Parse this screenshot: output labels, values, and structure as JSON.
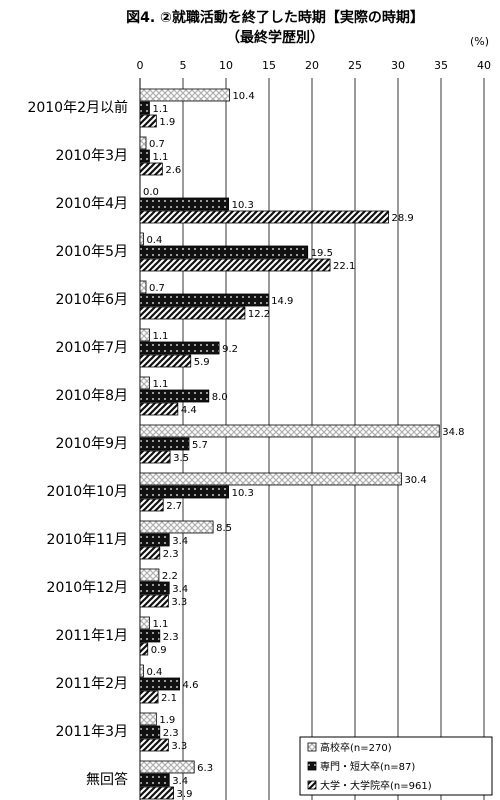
{
  "chart_data": {
    "type": "hbar",
    "title": "図4. ②就職活動を終了した時期【実際の時期】",
    "subtitle": "（最終学歴別）",
    "unit_label": "(%)",
    "categories": [
      "2010年2月以前",
      "2010年3月",
      "2010年4月",
      "2010年5月",
      "2010年6月",
      "2010年7月",
      "2010年8月",
      "2010年9月",
      "2010年10月",
      "2010年11月",
      "2010年12月",
      "2011年1月",
      "2011年2月",
      "2011年3月",
      "無回答"
    ],
    "series": [
      {
        "name": "高校卒(n=270)",
        "color": "#b0b0b0",
        "pattern": "crosshatch",
        "values": [
          10.4,
          0.7,
          0.0,
          0.4,
          0.7,
          1.1,
          1.1,
          34.8,
          30.4,
          8.5,
          2.2,
          1.1,
          0.4,
          1.9,
          6.3
        ],
        "value_labels": [
          "10.4",
          "0.7",
          "0.0",
          "0.4",
          "0.7",
          "1.1",
          "1.1",
          "34.8",
          "30.4",
          "8.5",
          "2.2",
          "1.1",
          "0.4",
          "1.9",
          "6.3"
        ]
      },
      {
        "name": "専門・短大卒(n=87)",
        "color": "#111111",
        "pattern": "dots",
        "values": [
          1.1,
          1.1,
          10.3,
          19.5,
          14.9,
          9.2,
          8.0,
          5.7,
          10.3,
          3.4,
          3.4,
          2.3,
          4.6,
          2.3,
          3.4
        ],
        "value_labels": [
          "1.1",
          "1.1",
          "10.3",
          "19.5",
          "14.9",
          "9.2",
          "8.0",
          "5.7",
          "10.3",
          "3.4",
          "3.4",
          "2.3",
          "4.6",
          "2.3",
          "3.4"
        ]
      },
      {
        "name": "大学・大学院卒(n=961)",
        "color": "#111111",
        "pattern": "stripes",
        "values": [
          1.9,
          2.6,
          28.9,
          22.1,
          12.2,
          5.9,
          4.4,
          3.5,
          2.7,
          2.3,
          3.3,
          0.9,
          2.1,
          3.3,
          3.9
        ]
      }
    ],
    "xlim": [
      0,
      40
    ],
    "xticks": [
      0,
      5,
      10,
      15,
      20,
      25,
      30,
      35,
      40
    ],
    "grid": true,
    "legend": "lower right"
  }
}
